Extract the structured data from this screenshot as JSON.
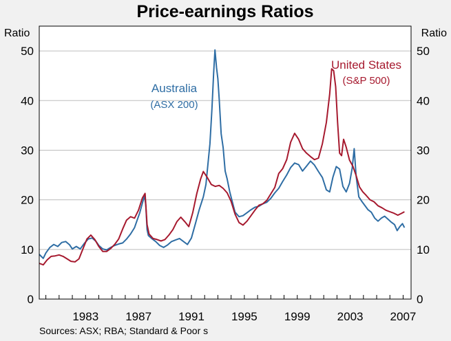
{
  "chart_data": {
    "type": "line",
    "title": "Price-earnings Ratios",
    "ylabel_left": "Ratio",
    "ylabel_right": "Ratio",
    "ylim": [
      0,
      55
    ],
    "yticks": [
      "0",
      "10",
      "20",
      "30",
      "40",
      "50"
    ],
    "xlim": [
      1979.5,
      2007.6
    ],
    "xticks": [
      "1983",
      "1987",
      "1991",
      "1995",
      "1999",
      "2003",
      "2007"
    ],
    "source": "Sources: ASX; RBA; Standard & Poor s",
    "grid": true,
    "series": [
      {
        "name": "Australia",
        "subtitle": "(ASX 200)",
        "color": "#2e6da4",
        "points": [
          [
            1979.5,
            9.0
          ],
          [
            1979.8,
            8.2
          ],
          [
            1980.0,
            9.3
          ],
          [
            1980.3,
            10.4
          ],
          [
            1980.6,
            11.0
          ],
          [
            1980.9,
            10.6
          ],
          [
            1981.2,
            11.4
          ],
          [
            1981.5,
            11.6
          ],
          [
            1981.8,
            10.9
          ],
          [
            1982.0,
            10.1
          ],
          [
            1982.3,
            10.6
          ],
          [
            1982.6,
            10.1
          ],
          [
            1982.9,
            11.2
          ],
          [
            1983.2,
            12.1
          ],
          [
            1983.5,
            12.3
          ],
          [
            1983.8,
            11.6
          ],
          [
            1984.0,
            10.8
          ],
          [
            1984.3,
            10.1
          ],
          [
            1984.6,
            9.9
          ],
          [
            1984.9,
            10.4
          ],
          [
            1985.2,
            10.8
          ],
          [
            1985.5,
            11.1
          ],
          [
            1985.8,
            11.3
          ],
          [
            1986.1,
            12.1
          ],
          [
            1986.4,
            13.1
          ],
          [
            1986.7,
            14.4
          ],
          [
            1986.9,
            15.9
          ],
          [
            1987.1,
            17.4
          ],
          [
            1987.3,
            19.4
          ],
          [
            1987.45,
            20.8
          ],
          [
            1987.55,
            19.0
          ],
          [
            1987.65,
            14.0
          ],
          [
            1987.75,
            12.8
          ],
          [
            1988.0,
            12.2
          ],
          [
            1988.3,
            11.6
          ],
          [
            1988.6,
            10.8
          ],
          [
            1988.9,
            10.4
          ],
          [
            1989.2,
            10.9
          ],
          [
            1989.5,
            11.6
          ],
          [
            1989.8,
            11.9
          ],
          [
            1990.1,
            12.2
          ],
          [
            1990.4,
            11.6
          ],
          [
            1990.7,
            11.0
          ],
          [
            1991.0,
            12.3
          ],
          [
            1991.3,
            15.2
          ],
          [
            1991.6,
            18.1
          ],
          [
            1991.9,
            20.6
          ],
          [
            1992.1,
            23.1
          ],
          [
            1992.25,
            27.2
          ],
          [
            1992.4,
            31.3
          ],
          [
            1992.55,
            38.3
          ],
          [
            1992.68,
            45.6
          ],
          [
            1992.78,
            50.2
          ],
          [
            1992.9,
            46.6
          ],
          [
            1993.0,
            44.4
          ],
          [
            1993.1,
            40.2
          ],
          [
            1993.25,
            33.3
          ],
          [
            1993.4,
            30.5
          ],
          [
            1993.55,
            25.8
          ],
          [
            1993.7,
            24.2
          ],
          [
            1993.9,
            21.6
          ],
          [
            1994.1,
            19.5
          ],
          [
            1994.3,
            17.5
          ],
          [
            1994.6,
            16.6
          ],
          [
            1994.9,
            16.8
          ],
          [
            1995.2,
            17.4
          ],
          [
            1995.5,
            18.0
          ],
          [
            1995.8,
            18.5
          ],
          [
            1996.1,
            18.7
          ],
          [
            1996.4,
            19.2
          ],
          [
            1996.7,
            19.5
          ],
          [
            1997.0,
            20.3
          ],
          [
            1997.3,
            21.4
          ],
          [
            1997.6,
            22.3
          ],
          [
            1997.9,
            23.7
          ],
          [
            1998.2,
            25.0
          ],
          [
            1998.5,
            26.5
          ],
          [
            1998.8,
            27.4
          ],
          [
            1999.1,
            27.1
          ],
          [
            1999.4,
            25.8
          ],
          [
            1999.7,
            26.8
          ],
          [
            2000.0,
            27.8
          ],
          [
            2000.3,
            27.0
          ],
          [
            2000.6,
            25.7
          ],
          [
            2000.9,
            24.5
          ],
          [
            2001.2,
            22.0
          ],
          [
            2001.45,
            21.6
          ],
          [
            2001.7,
            24.6
          ],
          [
            2001.95,
            26.7
          ],
          [
            2002.2,
            26.2
          ],
          [
            2002.45,
            22.7
          ],
          [
            2002.7,
            21.6
          ],
          [
            2002.95,
            23.3
          ],
          [
            2003.15,
            26.4
          ],
          [
            2003.3,
            30.3
          ],
          [
            2003.45,
            24.8
          ],
          [
            2003.65,
            20.6
          ],
          [
            2003.85,
            19.8
          ],
          [
            2004.1,
            18.9
          ],
          [
            2004.35,
            18.0
          ],
          [
            2004.6,
            17.5
          ],
          [
            2004.85,
            16.3
          ],
          [
            2005.1,
            15.7
          ],
          [
            2005.35,
            16.3
          ],
          [
            2005.6,
            16.7
          ],
          [
            2005.85,
            16.1
          ],
          [
            2006.1,
            15.5
          ],
          [
            2006.35,
            15.0
          ],
          [
            2006.55,
            13.8
          ],
          [
            2006.75,
            14.6
          ],
          [
            2006.95,
            15.2
          ],
          [
            2007.1,
            14.4
          ]
        ]
      },
      {
        "name": "United States",
        "subtitle": "(S&P 500)",
        "color": "#a6192e",
        "points": [
          [
            1979.5,
            7.2
          ],
          [
            1979.8,
            6.9
          ],
          [
            1980.1,
            7.9
          ],
          [
            1980.4,
            8.6
          ],
          [
            1980.7,
            8.7
          ],
          [
            1981.0,
            8.9
          ],
          [
            1981.3,
            8.6
          ],
          [
            1981.6,
            8.1
          ],
          [
            1981.9,
            7.6
          ],
          [
            1982.2,
            7.5
          ],
          [
            1982.5,
            8.1
          ],
          [
            1982.8,
            10.1
          ],
          [
            1983.1,
            12.1
          ],
          [
            1983.4,
            12.9
          ],
          [
            1983.7,
            12.0
          ],
          [
            1984.0,
            10.6
          ],
          [
            1984.3,
            9.6
          ],
          [
            1984.6,
            9.6
          ],
          [
            1984.9,
            10.2
          ],
          [
            1985.2,
            11.0
          ],
          [
            1985.5,
            12.1
          ],
          [
            1985.8,
            14.1
          ],
          [
            1986.1,
            15.9
          ],
          [
            1986.4,
            16.6
          ],
          [
            1986.7,
            16.3
          ],
          [
            1987.0,
            17.9
          ],
          [
            1987.3,
            20.4
          ],
          [
            1987.5,
            21.3
          ],
          [
            1987.65,
            15.0
          ],
          [
            1987.8,
            13.1
          ],
          [
            1988.1,
            12.2
          ],
          [
            1988.4,
            12.0
          ],
          [
            1988.7,
            11.7
          ],
          [
            1989.0,
            12.0
          ],
          [
            1989.3,
            12.9
          ],
          [
            1989.6,
            14.0
          ],
          [
            1989.9,
            15.6
          ],
          [
            1990.2,
            16.5
          ],
          [
            1990.5,
            15.6
          ],
          [
            1990.8,
            14.6
          ],
          [
            1991.1,
            17.4
          ],
          [
            1991.4,
            21.2
          ],
          [
            1991.7,
            24.2
          ],
          [
            1991.9,
            25.7
          ],
          [
            1992.2,
            24.5
          ],
          [
            1992.5,
            23.1
          ],
          [
            1992.8,
            22.7
          ],
          [
            1993.1,
            22.9
          ],
          [
            1993.4,
            22.3
          ],
          [
            1993.7,
            21.4
          ],
          [
            1994.0,
            19.7
          ],
          [
            1994.3,
            17.1
          ],
          [
            1994.6,
            15.4
          ],
          [
            1994.9,
            14.9
          ],
          [
            1995.2,
            15.7
          ],
          [
            1995.5,
            16.8
          ],
          [
            1995.8,
            17.9
          ],
          [
            1996.1,
            18.9
          ],
          [
            1996.4,
            19.2
          ],
          [
            1996.7,
            19.9
          ],
          [
            1997.0,
            21.2
          ],
          [
            1997.3,
            22.5
          ],
          [
            1997.6,
            25.3
          ],
          [
            1997.9,
            26.3
          ],
          [
            1998.2,
            28.1
          ],
          [
            1998.5,
            31.6
          ],
          [
            1998.8,
            33.4
          ],
          [
            1999.1,
            32.2
          ],
          [
            1999.4,
            30.3
          ],
          [
            1999.7,
            29.4
          ],
          [
            2000.0,
            28.7
          ],
          [
            2000.3,
            28.1
          ],
          [
            2000.6,
            28.4
          ],
          [
            2000.9,
            31.3
          ],
          [
            2001.2,
            35.6
          ],
          [
            2001.45,
            41.3
          ],
          [
            2001.6,
            46.4
          ],
          [
            2001.75,
            46.0
          ],
          [
            2001.9,
            42.8
          ],
          [
            2002.05,
            35.6
          ],
          [
            2002.2,
            29.4
          ],
          [
            2002.35,
            28.9
          ],
          [
            2002.5,
            32.2
          ],
          [
            2002.7,
            30.6
          ],
          [
            2002.95,
            28.0
          ],
          [
            2003.2,
            26.8
          ],
          [
            2003.45,
            24.9
          ],
          [
            2003.7,
            22.6
          ],
          [
            2003.95,
            21.6
          ],
          [
            2004.2,
            20.9
          ],
          [
            2004.5,
            20.0
          ],
          [
            2004.8,
            19.6
          ],
          [
            2005.1,
            18.8
          ],
          [
            2005.4,
            18.4
          ],
          [
            2005.7,
            17.9
          ],
          [
            2006.0,
            17.6
          ],
          [
            2006.3,
            17.3
          ],
          [
            2006.6,
            16.9
          ],
          [
            2006.9,
            17.3
          ],
          [
            2007.1,
            17.6
          ]
        ]
      }
    ]
  }
}
